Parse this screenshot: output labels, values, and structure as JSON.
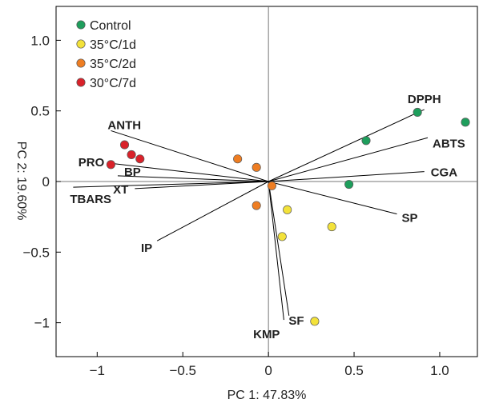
{
  "chart_data": {
    "type": "scatter",
    "title": "",
    "xlabel": "PC 1: 47.83%",
    "ylabel": "PC 2: 19.60%",
    "xlim": [
      -1.24,
      1.22
    ],
    "ylim": [
      -1.24,
      1.24
    ],
    "x_ticks": [
      -1,
      -0.5,
      0,
      0.5,
      1.0
    ],
    "x_tick_labels": [
      "−1",
      "−0.5",
      "0",
      "0.5",
      "1.0"
    ],
    "y_ticks": [
      1.0,
      0.5,
      0,
      -0.5,
      -1
    ],
    "y_tick_labels": [
      "1.0",
      "0.5",
      "0",
      "−0.5",
      "−1"
    ],
    "grid": false,
    "legend_position": "top-left",
    "series": [
      {
        "name": "Control",
        "color": "#1e9e5c",
        "points": [
          {
            "x": 0.87,
            "y": 0.49
          },
          {
            "x": 1.15,
            "y": 0.42
          },
          {
            "x": 0.57,
            "y": 0.29
          },
          {
            "x": 0.47,
            "y": -0.02
          }
        ]
      },
      {
        "name": "35°C/1d",
        "color": "#f3e23a",
        "points": [
          {
            "x": 0.11,
            "y": -0.2
          },
          {
            "x": 0.37,
            "y": -0.32
          },
          {
            "x": 0.08,
            "y": -0.39
          },
          {
            "x": 0.27,
            "y": -0.99
          }
        ]
      },
      {
        "name": "35°C/2d",
        "color": "#ee7d22",
        "points": [
          {
            "x": -0.18,
            "y": 0.16
          },
          {
            "x": -0.07,
            "y": 0.1
          },
          {
            "x": 0.02,
            "y": -0.03
          },
          {
            "x": -0.07,
            "y": -0.17
          }
        ]
      },
      {
        "name": "30°C/7d",
        "color": "#d9222a",
        "points": [
          {
            "x": -0.84,
            "y": 0.26
          },
          {
            "x": -0.8,
            "y": 0.19
          },
          {
            "x": -0.75,
            "y": 0.16
          },
          {
            "x": -0.92,
            "y": 0.12
          }
        ]
      }
    ],
    "loadings": [
      {
        "label": "DPPH",
        "x": 0.91,
        "y": 0.51
      },
      {
        "label": "ABTS",
        "x": 0.93,
        "y": 0.31
      },
      {
        "label": "CGA",
        "x": 0.91,
        "y": 0.07
      },
      {
        "label": "SP",
        "x": 0.75,
        "y": -0.23
      },
      {
        "label": "SF",
        "x": 0.09,
        "y": -0.98
      },
      {
        "label": "KMP",
        "x": 0.12,
        "y": -0.95
      },
      {
        "label": "IP",
        "x": -0.65,
        "y": -0.42
      },
      {
        "label": "XT",
        "x": -0.78,
        "y": -0.05
      },
      {
        "label": "TBARS",
        "x": -1.14,
        "y": -0.04
      },
      {
        "label": "BP",
        "x": -0.88,
        "y": 0.04
      },
      {
        "label": "PRO",
        "x": -0.93,
        "y": 0.13
      },
      {
        "label": "ANTH",
        "x": -0.92,
        "y": 0.36
      }
    ]
  }
}
